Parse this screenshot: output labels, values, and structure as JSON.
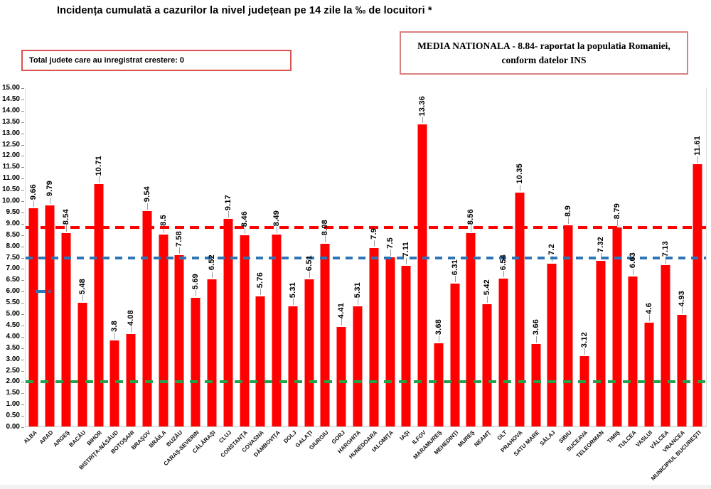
{
  "annotations": {
    "total_growth_text": "Total judete care au inregistrat crestere: 0",
    "media_line1": "MEDIA NATIONALA - 8.84- raportat la populatia Romaniei,",
    "media_line2": "conform datelor INS"
  },
  "colors": {
    "bar": "#fe0000",
    "leader_line": "#9b9b9b",
    "axis_line": "#d6d6d6",
    "box1_border": "#d9534f",
    "box2_border": "#d98080",
    "stray_marker_blue": "#2e75b6",
    "stray_marker_overlap": "#81456d"
  },
  "chart_data": {
    "type": "bar",
    "title": "Incidența cumulată a cazurilor la nivel județean pe 14 zile la ‰ de locuitori *",
    "xlabel": "",
    "ylabel": "",
    "ylim": [
      0,
      15
    ],
    "ytick_step": 0.5,
    "grid": false,
    "legend": "none",
    "bar_color": "#fe0000",
    "categories": [
      "ALBA",
      "ARAD",
      "ARGEŞ",
      "BACĂU",
      "BIHOR",
      "BISTRIŢA-NĂSĂUD",
      "BOTOŞANI",
      "BRAŞOV",
      "BRĂILA",
      "BUZĂU",
      "CARAŞ-SEVERIN",
      "CĂLĂRAŞI",
      "CLUJ",
      "CONSTANŢA",
      "COVASNA",
      "DÂMBOVIŢA",
      "DOLJ",
      "GALAŢI",
      "GIURGIU",
      "GORJ",
      "HARGHITA",
      "HUNEDOARA",
      "IALOMIŢA",
      "IAŞI",
      "ILFOV",
      "MARAMUREŞ",
      "MEHEDINŢI",
      "MUREŞ",
      "NEAMŢ",
      "OLT",
      "PRAHOVA",
      "SATU MARE",
      "SĂLAJ",
      "SIBIU",
      "SUCEAVA",
      "TELEORMAN",
      "TIMIŞ",
      "TULCEA",
      "VASLUI",
      "VÂLCEA",
      "VRANCEA",
      "MUNICIPIUL BUCUREŞTI"
    ],
    "values": [
      9.66,
      9.79,
      8.54,
      5.48,
      10.71,
      3.8,
      4.08,
      9.54,
      8.5,
      7.58,
      5.69,
      6.52,
      9.17,
      8.46,
      5.76,
      8.49,
      5.31,
      6.51,
      8.08,
      4.41,
      5.31,
      7.9,
      7.5,
      7.11,
      13.36,
      3.68,
      6.31,
      8.56,
      5.42,
      6.54,
      10.35,
      3.66,
      7.2,
      8.9,
      3.12,
      7.32,
      8.79,
      6.63,
      4.6,
      7.13,
      4.93,
      11.61
    ],
    "value_labels": [
      "9.66",
      "9.79",
      "8.54",
      "5.48",
      "10.71",
      "3.8",
      "4.08",
      "9.54",
      "8.5",
      "7.58",
      "5.69",
      "6.52",
      "9.17",
      "8.46",
      "5.76",
      "8.49",
      "5.31",
      "6.51",
      "8.08",
      "4.41",
      "5.31",
      "7.9",
      "7.5",
      "7.11",
      "13.36",
      "3.68",
      "6.31",
      "8.56",
      "5.42",
      "6.54",
      "10.35",
      "3.66",
      "7.2",
      "8.9",
      "3.12",
      "7.32",
      "8.79",
      "6.63",
      "4.6",
      "7.13",
      "4.93",
      "11.61"
    ],
    "reference_lines": [
      {
        "name": "media-nationala",
        "value": 8.84,
        "color": "#fe0000",
        "style": "dashed",
        "dash": 13,
        "gap": 8
      },
      {
        "name": "reference-blue",
        "value": 7.5,
        "color": "#2e75b6",
        "style": "dashed",
        "dash": 10,
        "gap": 8
      },
      {
        "name": "reference-green",
        "value": 2.0,
        "color": "#22a24b",
        "style": "dashed",
        "dash": 11,
        "gap": 10
      }
    ],
    "stray_marker": {
      "value": 6.0,
      "color": "#2e75b6"
    }
  }
}
